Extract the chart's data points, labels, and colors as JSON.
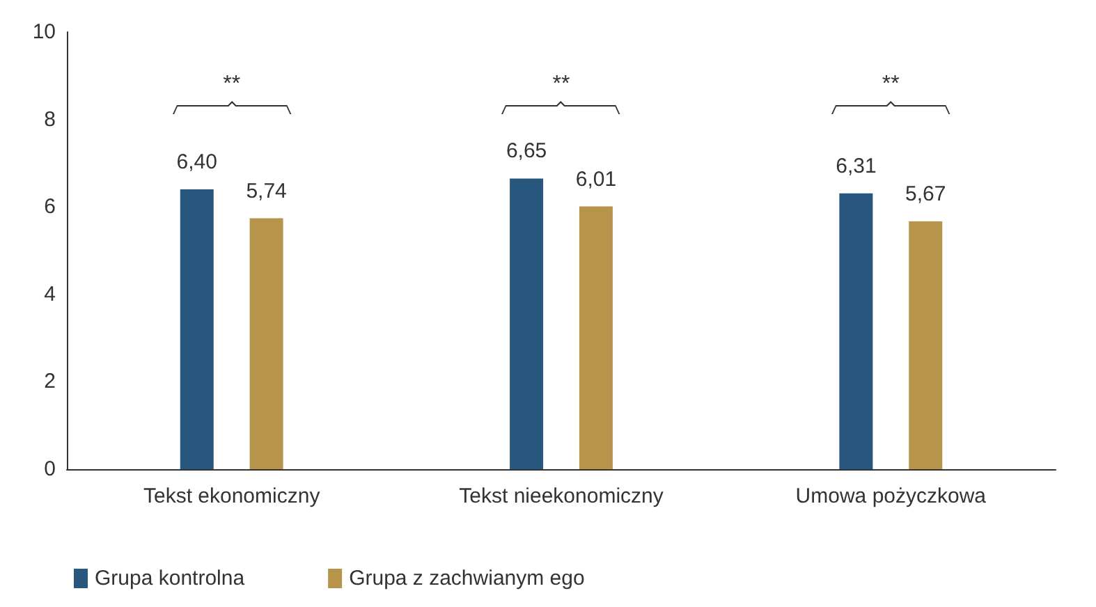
{
  "chart_data": {
    "type": "bar",
    "categories": [
      "Tekst ekonomiczny",
      "Tekst nieekonomiczny",
      "Umowa pożyczkowa"
    ],
    "series": [
      {
        "name": "Grupa kontrolna",
        "color": "#27577f",
        "values": [
          6.4,
          6.65,
          6.31
        ],
        "value_labels": [
          "6,40",
          "6,65",
          "6,31"
        ]
      },
      {
        "name": "Grupa z zachwianym ego",
        "color": "#b8934a",
        "values": [
          5.74,
          6.01,
          5.67
        ],
        "value_labels": [
          "5,74",
          "6,01",
          "5,67"
        ]
      }
    ],
    "ylim": [
      0,
      10
    ],
    "yticks": [
      0,
      2,
      4,
      6,
      8,
      10
    ],
    "grid": false,
    "legend": "bottom left",
    "annotations": [
      "**",
      "**",
      "**"
    ]
  }
}
